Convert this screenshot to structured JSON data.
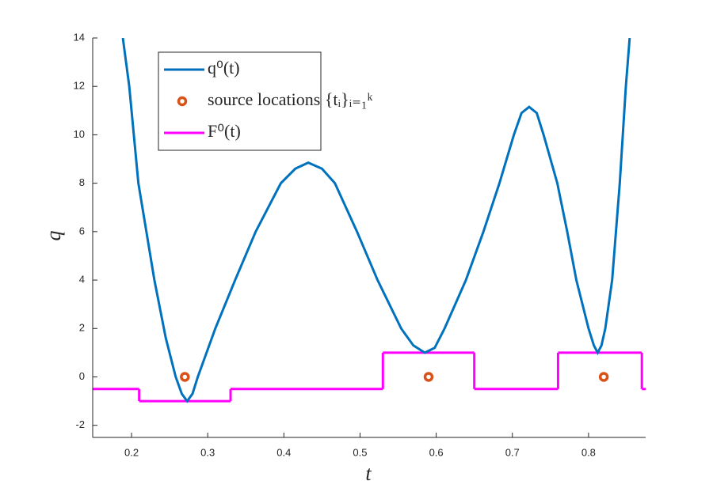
{
  "chart_data": {
    "type": "line",
    "xlabel": "t",
    "ylabel": "q",
    "xlim": [
      0.149,
      0.875
    ],
    "ylim": [
      -2.5,
      14
    ],
    "xticks": [
      0.2,
      0.3,
      0.4,
      0.5,
      0.6,
      0.7,
      0.8
    ],
    "yticks": [
      -2,
      0,
      2,
      4,
      6,
      8,
      10,
      12,
      14
    ],
    "legend": "top-left",
    "series": [
      {
        "name": "q⁰(t)",
        "color": "#0072bd",
        "style": "line",
        "x": [
          0.1886,
          0.197,
          0.209,
          0.23,
          0.245,
          0.258,
          0.266,
          0.273,
          0.28,
          0.287,
          0.31,
          0.336,
          0.363,
          0.396,
          0.415,
          0.432,
          0.45,
          0.467,
          0.496,
          0.523,
          0.554,
          0.57,
          0.585,
          0.598,
          0.611,
          0.639,
          0.662,
          0.683,
          0.702,
          0.712,
          0.722,
          0.732,
          0.741,
          0.759,
          0.772,
          0.784,
          0.8,
          0.807,
          0.812,
          0.817,
          0.822,
          0.831,
          0.841,
          0.849,
          0.854
        ],
        "values": [
          14,
          12,
          8,
          4,
          1.6,
          0,
          -0.7,
          -1,
          -0.7,
          0,
          2,
          4,
          6,
          8,
          8.6,
          8.85,
          8.6,
          8,
          6,
          4,
          2,
          1.3,
          1,
          1.2,
          2,
          4,
          6,
          8,
          10,
          10.9,
          11.15,
          10.9,
          10,
          8,
          6,
          4,
          2,
          1.3,
          1,
          1.3,
          2,
          4,
          8,
          12,
          14
        ]
      },
      {
        "name": "source locations {tᵢ}ᵢ₌₁ᵏ",
        "color": "#d95319",
        "style": "markers",
        "x": [
          0.27,
          0.59,
          0.82
        ],
        "values": [
          0,
          0,
          0
        ]
      },
      {
        "name": "F⁰(t)",
        "color": "#ff00ff",
        "style": "step",
        "x": [
          0.149,
          0.21,
          0.33,
          0.53,
          0.65,
          0.76,
          0.87,
          0.875
        ],
        "values": [
          -0.5,
          -1,
          -0.5,
          1,
          -0.5,
          1,
          -0.5,
          -0.5
        ]
      }
    ]
  }
}
